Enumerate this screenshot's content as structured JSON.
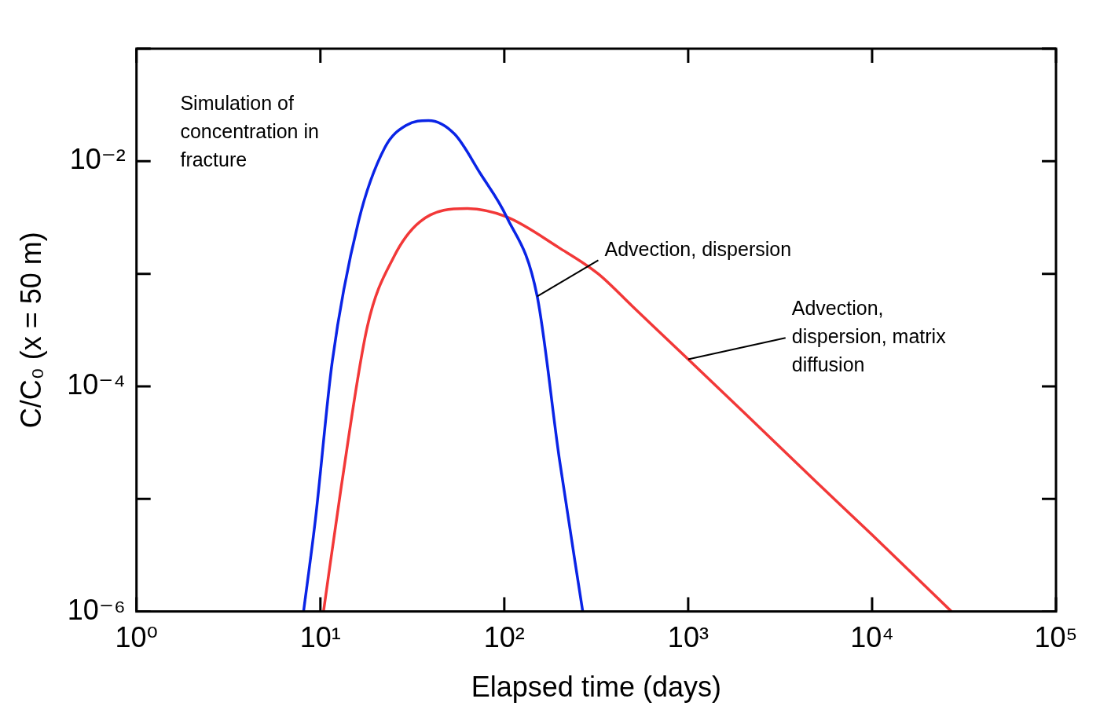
{
  "chart_data": {
    "type": "line",
    "x_label": "Elapsed time (days)",
    "y_label": "C/C₀ (x = 50 m)",
    "log": true,
    "grid": false,
    "xlim": [
      1,
      100000
    ],
    "ylim": [
      1e-06,
      0.1
    ],
    "xticks": [
      {
        "value": 1,
        "label": "10⁰"
      },
      {
        "value": 10,
        "label": "10¹"
      },
      {
        "value": 100,
        "label": "10²"
      },
      {
        "value": 1000,
        "label": "10³"
      },
      {
        "value": 10000,
        "label": "10⁴"
      },
      {
        "value": 100000,
        "label": "10⁵"
      }
    ],
    "yticks": [
      {
        "value": 1e-06,
        "label": "10⁻⁶"
      },
      {
        "value": 0.0001,
        "label": "10⁻⁴"
      },
      {
        "value": 0.01,
        "label": "10⁻²"
      }
    ],
    "annotations": [
      {
        "text": "Simulation of concentration in fracture"
      }
    ],
    "series": [
      {
        "name": "Advection, dispersion",
        "color": "#0a24e6",
        "x": [
          8.1,
          9.4,
          11.6,
          16.1,
          22.4,
          29.5,
          38.7,
          53.7,
          74,
          103,
          151,
          199,
          267
        ],
        "values": [
          1e-06,
          6.6e-06,
          0.000166,
          0.0029,
          0.0132,
          0.021,
          0.023,
          0.0174,
          0.0078,
          0.0032,
          0.00063,
          2.3e-05,
          1e-06
        ]
      },
      {
        "name": "Advection, dispersion, matrix diffusion",
        "color": "#f23838",
        "x": [
          10.4,
          13,
          18,
          25,
          34.8,
          63,
          103,
          199,
          324,
          500,
          1000,
          2000,
          5000,
          10000,
          27000
        ],
        "values": [
          1e-06,
          1.3e-05,
          0.00034,
          0.0014,
          0.0029,
          0.0038,
          0.0032,
          0.0017,
          0.001,
          0.00051,
          0.000174,
          5.9e-05,
          1.4e-05,
          4.8e-06,
          1e-06
        ]
      }
    ]
  }
}
